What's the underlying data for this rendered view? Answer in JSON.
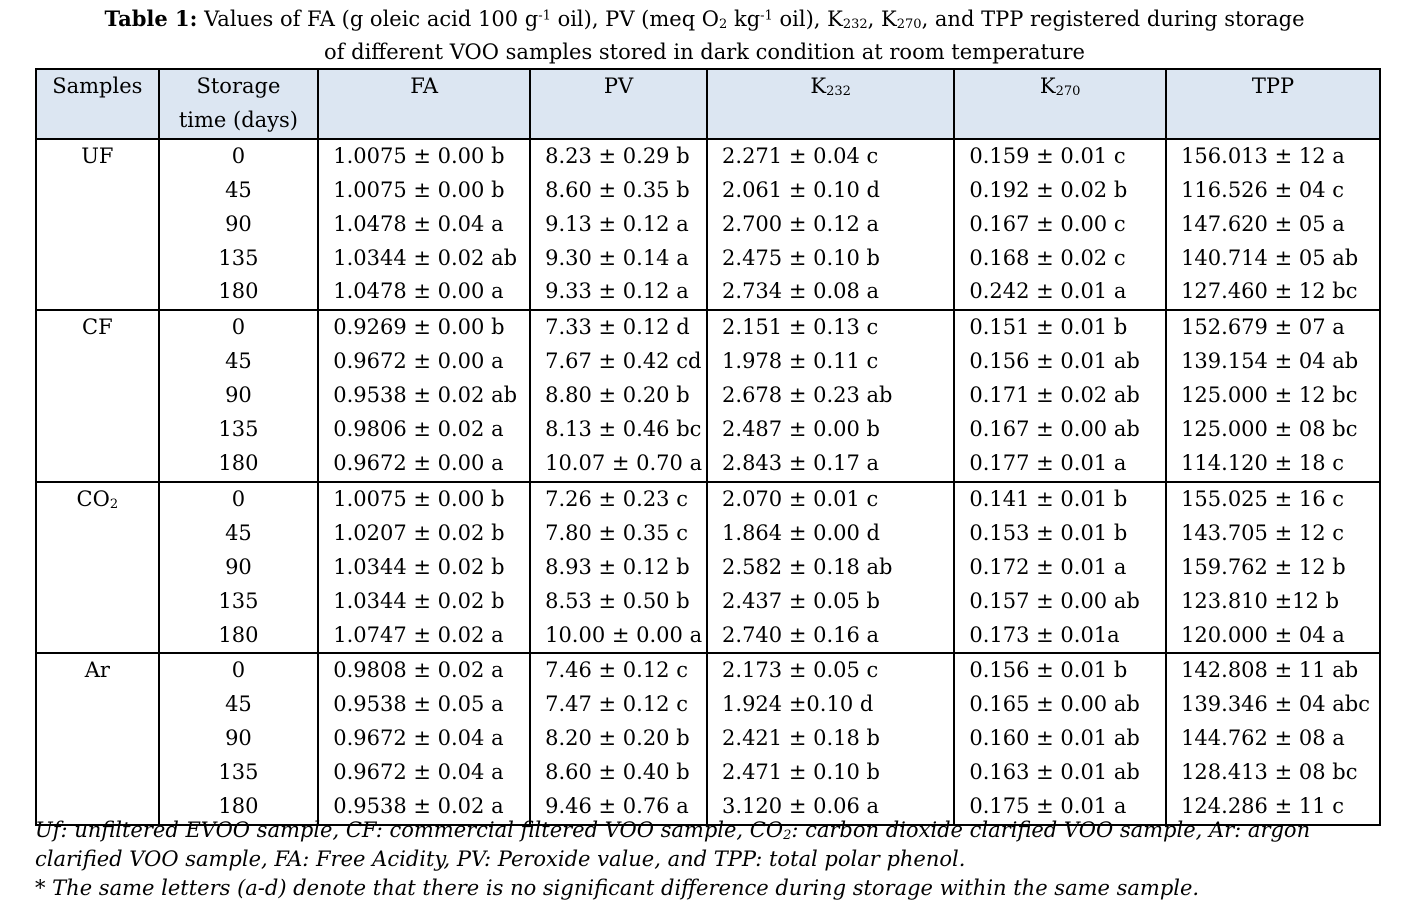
{
  "caption": {
    "label": "Table 1:",
    "p1": " Values of FA (g oleic acid 100 g",
    "p1sup": "-1",
    "p2": " oil), PV (meq O",
    "p2sub": "2",
    "p3": " kg",
    "p3sup": "-1",
    "p4": " oil), K",
    "p4sub": "232",
    "p5": ", K",
    "p5sub": "270",
    "p6": ", and TPP registered during storage",
    "line2": "of different VOO samples stored in dark condition at room temperature"
  },
  "headers": {
    "samples": "Samples",
    "storage_1": "Storage",
    "storage_2": "time (days)",
    "fa": "FA",
    "pv": "PV",
    "k232_k": "K",
    "k232_sub": "232",
    "k270_k": "K",
    "k270_sub": "270",
    "tpp": "TPP"
  },
  "groups": [
    {
      "sample": "UF",
      "sample_sub": "",
      "rows": [
        {
          "days": "0",
          "fa": "1.0075 ± 0.00 b",
          "pv": "8.23 ± 0.29 b",
          "k232": "2.271 ± 0.04 c",
          "k270": "0.159 ± 0.01 c",
          "tpp": "156.013 ± 12 a"
        },
        {
          "days": "45",
          "fa": "1.0075 ± 0.00 b",
          "pv": "8.60 ± 0.35 b",
          "k232": "2.061 ± 0.10 d",
          "k270": "0.192 ± 0.02 b",
          "tpp": "116.526 ± 04 c"
        },
        {
          "days": "90",
          "fa": "1.0478 ± 0.04 a",
          "pv": "9.13 ± 0.12 a",
          "k232": "2.700 ± 0.12 a",
          "k270": "0.167 ± 0.00 c",
          "tpp": "147.620 ± 05 a"
        },
        {
          "days": "135",
          "fa": "1.0344 ± 0.02 ab",
          "pv": "9.30 ± 0.14 a",
          "k232": "2.475 ± 0.10 b",
          "k270": "0.168 ± 0.02 c",
          "tpp": "140.714 ± 05 ab"
        },
        {
          "days": "180",
          "fa": "1.0478 ± 0.00 a",
          "pv": "9.33 ± 0.12 a",
          "k232": "2.734 ± 0.08 a",
          "k270": "0.242 ± 0.01 a",
          "tpp": "127.460 ± 12 bc"
        }
      ]
    },
    {
      "sample": "CF",
      "sample_sub": "",
      "rows": [
        {
          "days": "0",
          "fa": "0.9269 ± 0.00 b",
          "pv": "7.33 ± 0.12 d",
          "k232": "2.151 ± 0.13 c",
          "k270": "0.151 ± 0.01 b",
          "tpp": "152.679 ± 07 a"
        },
        {
          "days": "45",
          "fa": "0.9672 ± 0.00 a",
          "pv": "7.67 ± 0.42 cd",
          "k232": "1.978 ± 0.11 c",
          "k270": "0.156 ± 0.01 ab",
          "tpp": "139.154 ± 04 ab"
        },
        {
          "days": "90",
          "fa": "0.9538 ± 0.02 ab",
          "pv": "8.80 ± 0.20 b",
          "k232": "2.678 ± 0.23 ab",
          "k270": "0.171 ± 0.02 ab",
          "tpp": "125.000 ± 12 bc"
        },
        {
          "days": "135",
          "fa": "0.9806 ± 0.02 a",
          "pv": "8.13 ± 0.46 bc",
          "k232": "2.487 ± 0.00 b",
          "k270": "0.167 ± 0.00 ab",
          "tpp": "125.000 ± 08 bc"
        },
        {
          "days": "180",
          "fa": "0.9672 ± 0.00 a",
          "pv": "10.07 ± 0.70 a",
          "k232": "2.843 ± 0.17 a",
          "k270": "0.177 ± 0.01 a",
          "tpp": "114.120 ± 18 c"
        }
      ]
    },
    {
      "sample": "CO",
      "sample_sub": "2",
      "rows": [
        {
          "days": "0",
          "fa": "1.0075 ± 0.00 b",
          "pv": "7.26 ± 0.23 c",
          "k232": "2.070 ± 0.01 c",
          "k270": "0.141 ± 0.01 b",
          "tpp": "155.025 ± 16 c"
        },
        {
          "days": "45",
          "fa": "1.0207 ± 0.02 b",
          "pv": "7.80 ± 0.35 c",
          "k232": "1.864 ± 0.00 d",
          "k270": "0.153 ± 0.01 b",
          "tpp": "143.705 ± 12 c"
        },
        {
          "days": "90",
          "fa": "1.0344 ± 0.02 b",
          "pv": "8.93 ± 0.12 b",
          "k232": "2.582 ± 0.18 ab",
          "k270": "0.172 ± 0.01 a",
          "tpp": "159.762 ± 12 b"
        },
        {
          "days": "135",
          "fa": "1.0344 ± 0.02 b",
          "pv": "8.53 ± 0.50 b",
          "k232": "2.437 ± 0.05 b",
          "k270": "0.157 ± 0.00 ab",
          "tpp": "123.810 ±12 b"
        },
        {
          "days": "180",
          "fa": "1.0747 ± 0.02 a",
          "pv": "10.00 ± 0.00 a",
          "k232": "2.740 ± 0.16 a",
          "k270": "0.173 ± 0.01a",
          "tpp": "120.000 ± 04 a"
        }
      ]
    },
    {
      "sample": "Ar",
      "sample_sub": "",
      "rows": [
        {
          "days": "0",
          "fa": "0.9808 ± 0.02 a",
          "pv": "7.46 ± 0.12 c",
          "k232": "2.173 ± 0.05 c",
          "k270": "0.156 ± 0.01 b",
          "tpp": "142.808 ± 11 ab"
        },
        {
          "days": "45",
          "fa": "0.9538 ± 0.05 a",
          "pv": "7.47 ± 0.12 c",
          "k232": "1.924 ±0.10 d",
          "k270": "0.165 ± 0.00 ab",
          "tpp": "139.346 ± 04 abc"
        },
        {
          "days": "90",
          "fa": "0.9672 ± 0.04 a",
          "pv": "8.20 ± 0.20 b",
          "k232": "2.421 ± 0.18 b",
          "k270": "0.160 ± 0.01 ab",
          "tpp": "144.762 ± 08 a"
        },
        {
          "days": "135",
          "fa": "0.9672 ± 0.04 a",
          "pv": "8.60 ± 0.40 b",
          "k232": "2.471 ± 0.10 b",
          "k270": "0.163 ± 0.01 ab",
          "tpp": "128.413 ± 08 bc"
        },
        {
          "days": "180",
          "fa": "0.9538 ± 0.02 a",
          "pv": "9.46 ± 0.76 a",
          "k232": "3.120 ± 0.06 a",
          "k270": "0.175 ± 0.01 a",
          "tpp": "124.286 ± 11 c"
        }
      ]
    }
  ],
  "notes": {
    "line1a": "Uf: unfiltered EVOO sample, CF: commercial filtered VOO sample, CO",
    "line1sub": "2",
    "line1b": ": carbon dioxide clarified VOO sample, Ar: argon",
    "line2": "clarified VOO sample, FA: Free Acidity, PV: Peroxide value, and TPP: total polar phenol.",
    "line3": "* The same letters (a-d) denote that there is no significant difference during storage within the same sample."
  }
}
